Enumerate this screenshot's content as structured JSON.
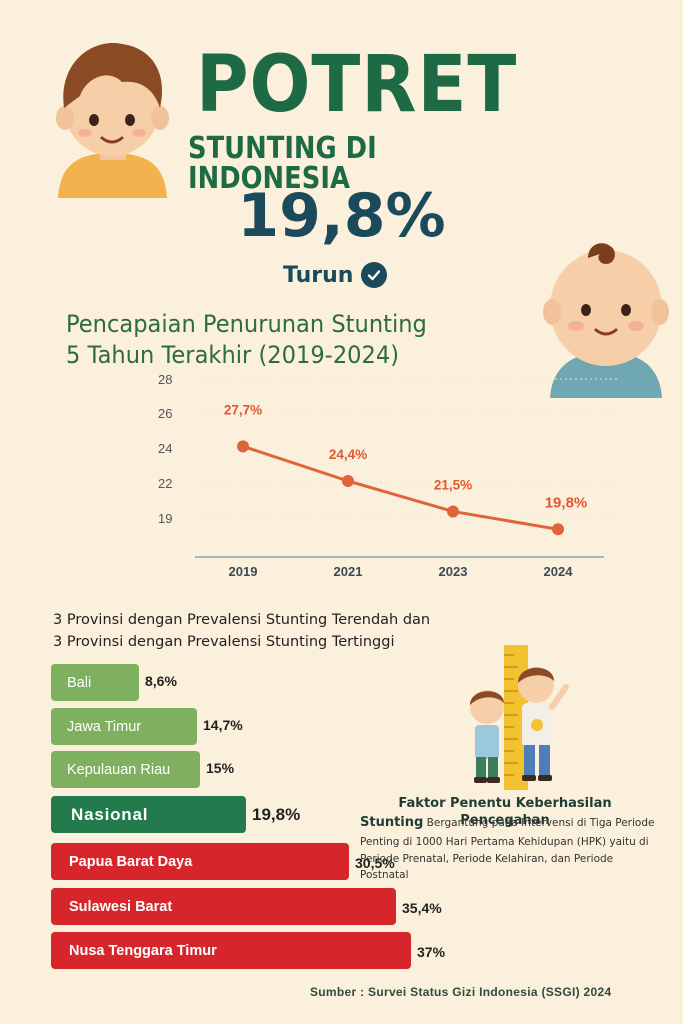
{
  "header": {
    "title": "POTRET",
    "subtitle": "STUNTING DI INDONESIA",
    "headline_value": "19,8%",
    "headline_status": "Turun"
  },
  "section_title_line1": "Pencapaian Penurunan Stunting",
  "section_title_line2": "5 Tahun Terakhir (2019-2024)",
  "chart_data": [
    {
      "type": "line",
      "title": "Pencapaian Penurunan Stunting 5 Tahun Terakhir (2019-2024)",
      "x": [
        "2019",
        "2021",
        "2023",
        "2024"
      ],
      "values": [
        27.7,
        24.4,
        21.5,
        19.8
      ],
      "labels": [
        "27,7%",
        "24,4%",
        "21,5%",
        "19,8%"
      ],
      "y_ticks": [
        "19",
        "22",
        "24",
        "26",
        "28"
      ],
      "grid": true,
      "colors": {
        "line": "#e0643a",
        "label": "#e2572f",
        "axis": "#8aa3b8",
        "tick": "#555555"
      }
    },
    {
      "type": "bar",
      "title_line1": "3 Provinsi dengan Prevalensi Stunting Terendah dan",
      "title_line2": "3 Provinsi dengan Prevalensi Stunting Tertinggi",
      "categories": [
        "Bali",
        "Jawa Timur",
        "Kepulauan Riau",
        "Nasional",
        "Papua Barat Daya",
        "Sulawesi Barat",
        "Nusa Tenggara Timur"
      ],
      "values": [
        8.6,
        14.7,
        15,
        19.8,
        30.5,
        35.4,
        37
      ],
      "labels": [
        "8,6%",
        "14,7%",
        "15%",
        "19,8%",
        "30,5%",
        "35,4%",
        "37%"
      ],
      "colors": [
        "#7fb060",
        "#7fb060",
        "#7fb060",
        "#227a4d",
        "#d6262c",
        "#d6262c",
        "#d6262c"
      ]
    }
  ],
  "info": {
    "title": "Faktor Penentu Keberhasilan Pencegahan",
    "lead": "Stunting",
    "body": "Bergantung pada Intervensi di Tiga Periode Penting di 1000 Hari Pertama Kehidupan (HPK) yaitu di Periode Prenatal, Periode Kelahiran, dan Periode Postnatal"
  },
  "source": "Sumber : Survei Status Gizi Indonesia (SSGI) 2024",
  "colors": {
    "background": "#fbf0dc",
    "title_green": "#1d6a45",
    "headline_navy": "#1b4a5c"
  },
  "icons": [
    "boy-face-icon",
    "baby-face-icon",
    "check-circle-icon",
    "children-height-ruler-icon"
  ]
}
